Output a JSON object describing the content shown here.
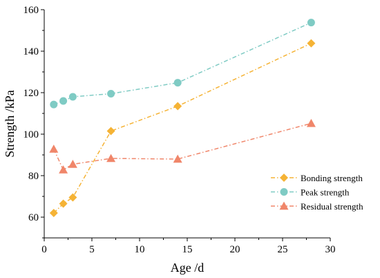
{
  "chart_data": {
    "type": "line",
    "xlabel": "Age /d",
    "ylabel": "Strength /kPa",
    "xlim": [
      0,
      30
    ],
    "ylim": [
      50,
      160
    ],
    "xticks": [
      0,
      5,
      10,
      15,
      20,
      25,
      30
    ],
    "yticks": [
      60,
      80,
      100,
      120,
      140,
      160
    ],
    "grid": false,
    "legend_position": "bottom-right",
    "line_style": "dash-dot",
    "series": [
      {
        "name": "Bonding strength",
        "color": "#F5B335",
        "marker": "diamond",
        "x": [
          1,
          2,
          3,
          7,
          14,
          28
        ],
        "y": [
          62.0,
          66.5,
          69.5,
          101.5,
          113.5,
          143.8
        ]
      },
      {
        "name": "Peak strength",
        "color": "#7FCBC4",
        "marker": "circle",
        "x": [
          1,
          2,
          3,
          7,
          14,
          28
        ],
        "y": [
          114.3,
          116.0,
          118.0,
          119.5,
          124.8,
          153.8
        ]
      },
      {
        "name": "Residual strength",
        "color": "#F0866A",
        "marker": "triangle",
        "x": [
          1,
          2,
          3,
          7,
          14,
          28
        ],
        "y": [
          92.8,
          82.8,
          85.5,
          88.3,
          88.0,
          105.2
        ]
      }
    ]
  }
}
